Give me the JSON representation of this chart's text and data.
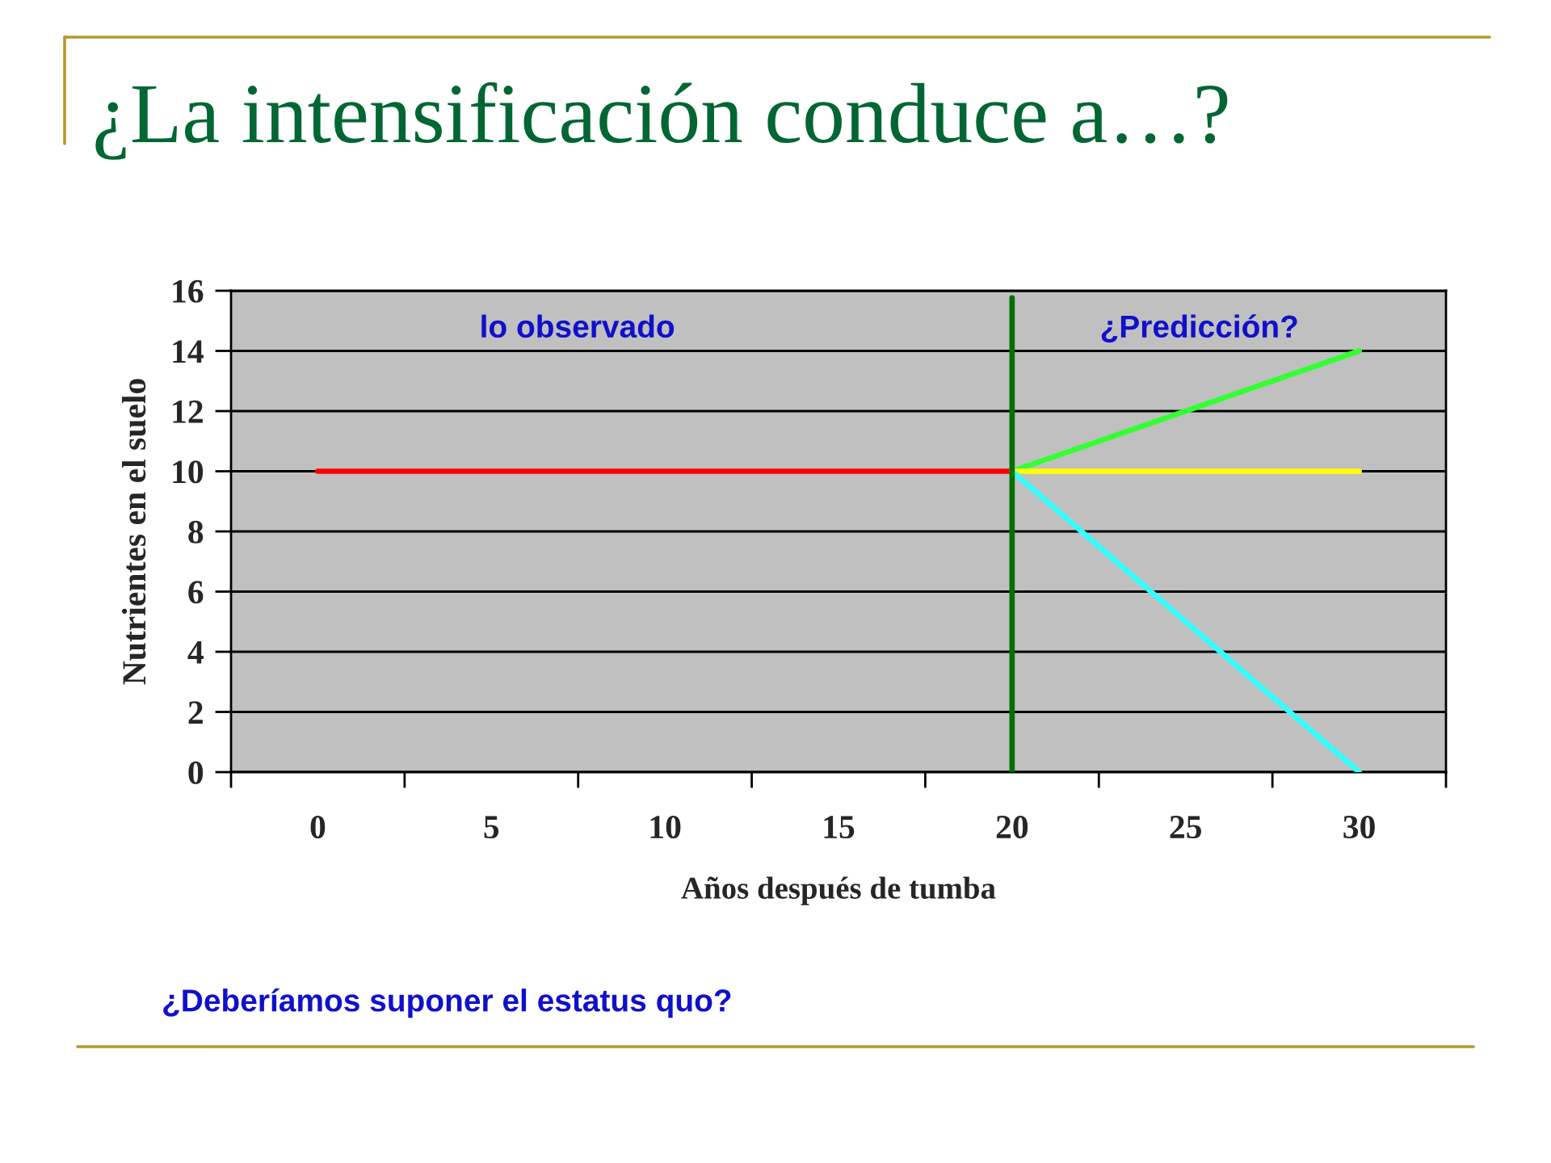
{
  "chart_data": {
    "type": "line",
    "title": "¿La intensificación conduce a…?",
    "xlabel": "Años después de tumba",
    "ylabel": "Nutrientes en el suelo",
    "annotations": [
      "lo observado",
      "¿Predicción?",
      "¿Deberíamos suponer el estatus quo?"
    ],
    "x": [
      0,
      5,
      10,
      15,
      20,
      25,
      30
    ],
    "series": [
      {
        "color": "#ff0000",
        "values": [
          10,
          10,
          10,
          10,
          10,
          null,
          null
        ]
      },
      {
        "color": "#33ff33",
        "values": [
          null,
          null,
          null,
          null,
          10,
          12,
          14
        ]
      },
      {
        "color": "#ffff00",
        "values": [
          null,
          null,
          null,
          null,
          10,
          10,
          10
        ]
      },
      {
        "color": "#33ffff",
        "values": [
          null,
          null,
          null,
          null,
          10,
          5,
          0
        ]
      }
    ],
    "xlim": [
      -2.5,
      32.5
    ],
    "xticks": [
      {
        "value": -2.5,
        "label": null
      },
      0,
      {
        "value": 2.5,
        "label": null
      },
      5,
      {
        "value": 7.5,
        "label": null
      },
      10,
      {
        "value": 12.5,
        "label": null
      },
      15,
      {
        "value": 17.5,
        "label": null
      },
      20,
      {
        "value": 22.5,
        "label": null
      },
      25,
      {
        "value": 27.5,
        "label": null
      },
      30,
      {
        "value": 32.5,
        "label": null
      }
    ],
    "ylim": [
      0,
      16
    ],
    "yticks": [
      0,
      2,
      4,
      6,
      8,
      10,
      12,
      14,
      16
    ],
    "grid": "y",
    "ref_lines": [
      {
        "axis": "x",
        "value": 20,
        "color": "#007000"
      }
    ]
  }
}
